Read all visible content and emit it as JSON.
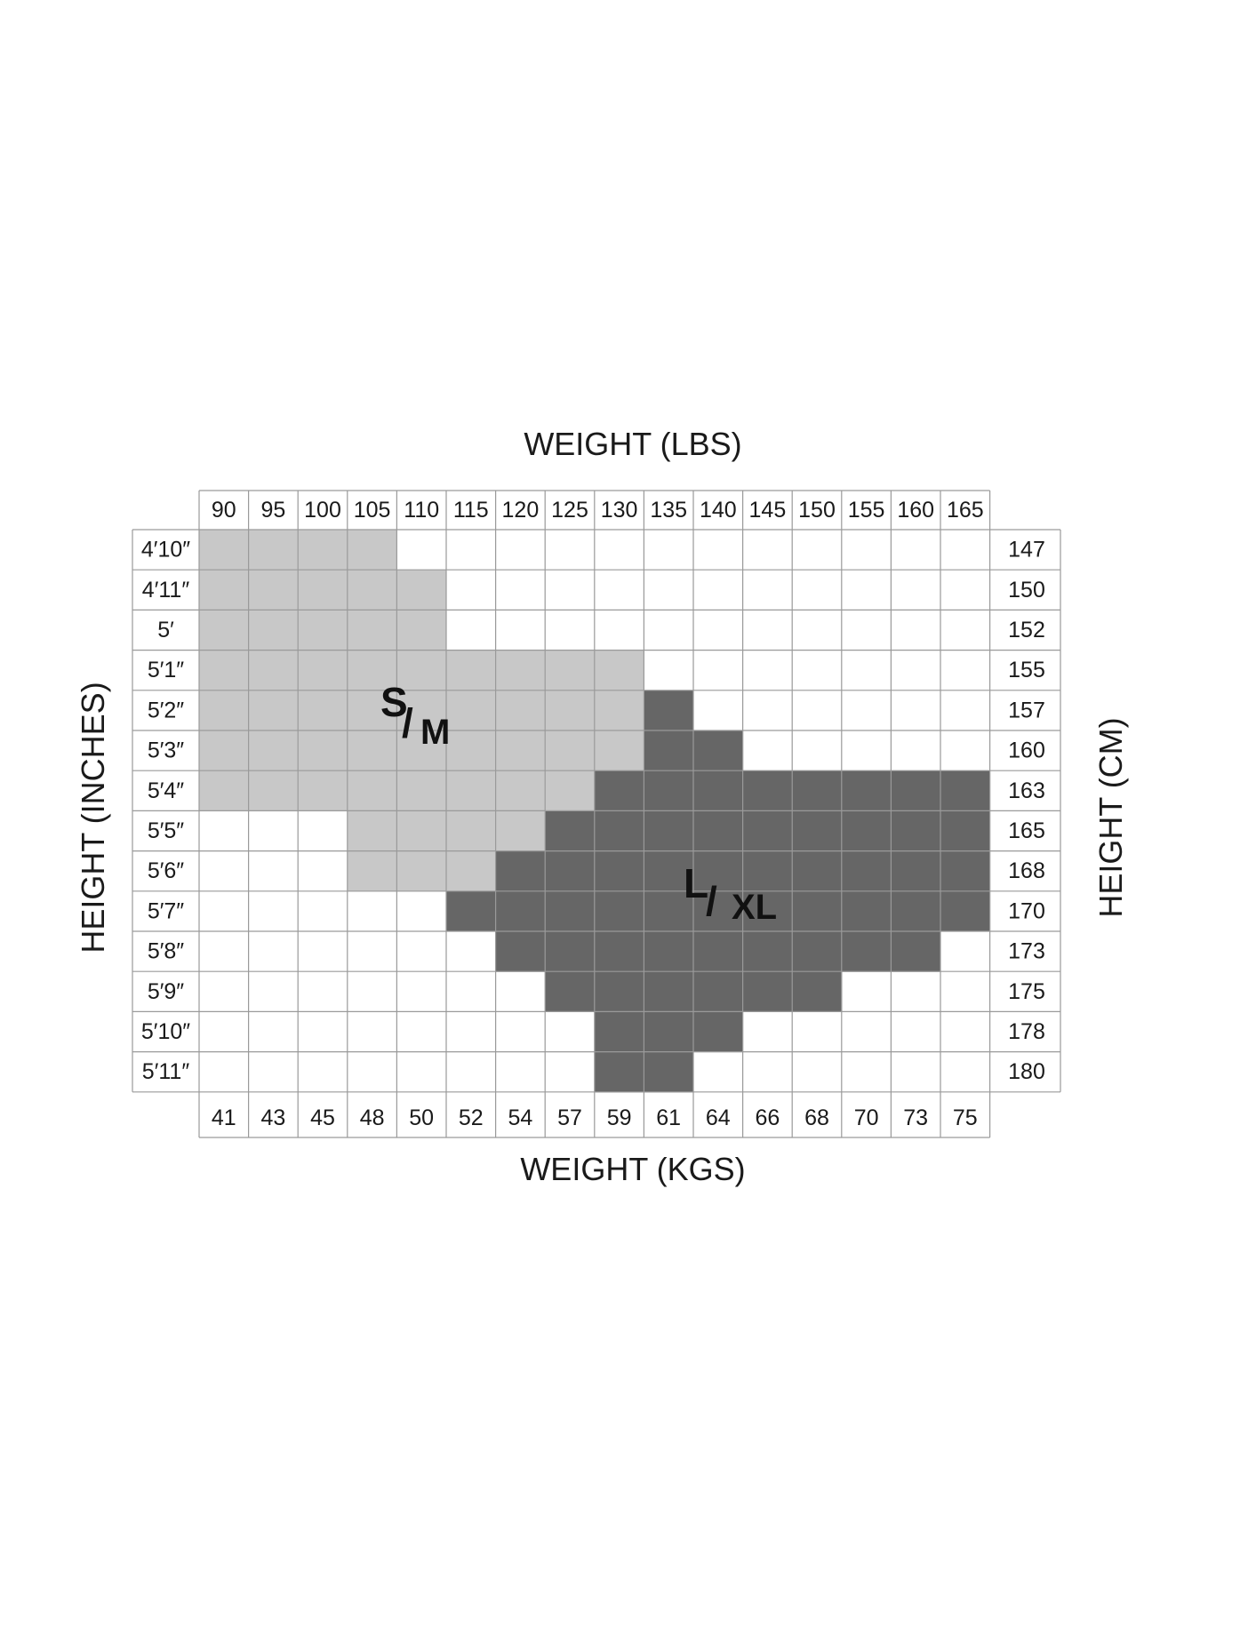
{
  "chart_data": {
    "type": "heatmap",
    "title": "",
    "x_top_label": "WEIGHT (LBS)",
    "x_bottom_label": "WEIGHT (KGS)",
    "y_left_label": "HEIGHT (INCHES)",
    "y_right_label": "HEIGHT (CM)",
    "weights_lbs": [
      "90",
      "95",
      "100",
      "105",
      "110",
      "115",
      "120",
      "125",
      "130",
      "135",
      "140",
      "145",
      "150",
      "155",
      "160",
      "165"
    ],
    "weights_kgs": [
      "41",
      "43",
      "45",
      "48",
      "50",
      "52",
      "54",
      "57",
      "59",
      "61",
      "64",
      "66",
      "68",
      "70",
      "73",
      "75"
    ],
    "heights_in": [
      "4′10″",
      "4′11″",
      "5′",
      "5′1″",
      "5′2″",
      "5′3″",
      "5′4″",
      "5′5″",
      "5′6″",
      "5′7″",
      "5′8″",
      "5′9″",
      "5′10″",
      "5′11″"
    ],
    "heights_cm": [
      "147",
      "150",
      "152",
      "155",
      "157",
      "160",
      "163",
      "165",
      "168",
      "170",
      "173",
      "175",
      "178",
      "180"
    ],
    "sizes": [
      {
        "main": "S",
        "sub": "M",
        "color": "#c8c8c8"
      },
      {
        "main": "L",
        "sub": "XL",
        "color": "#666666"
      }
    ],
    "grid_color": "#9a9a9a",
    "matrix": [
      [
        1,
        1,
        1,
        1,
        0,
        0,
        0,
        0,
        0,
        0,
        0,
        0,
        0,
        0,
        0,
        0
      ],
      [
        1,
        1,
        1,
        1,
        1,
        0,
        0,
        0,
        0,
        0,
        0,
        0,
        0,
        0,
        0,
        0
      ],
      [
        1,
        1,
        1,
        1,
        1,
        0,
        0,
        0,
        0,
        0,
        0,
        0,
        0,
        0,
        0,
        0
      ],
      [
        1,
        1,
        1,
        1,
        1,
        1,
        1,
        1,
        1,
        0,
        0,
        0,
        0,
        0,
        0,
        0
      ],
      [
        1,
        1,
        1,
        1,
        1,
        1,
        1,
        1,
        1,
        2,
        0,
        0,
        0,
        0,
        0,
        0
      ],
      [
        1,
        1,
        1,
        1,
        1,
        1,
        1,
        1,
        1,
        2,
        2,
        0,
        0,
        0,
        0,
        0
      ],
      [
        1,
        1,
        1,
        1,
        1,
        1,
        1,
        1,
        2,
        2,
        2,
        2,
        2,
        2,
        2,
        2
      ],
      [
        0,
        0,
        0,
        1,
        1,
        1,
        1,
        2,
        2,
        2,
        2,
        2,
        2,
        2,
        2,
        2
      ],
      [
        0,
        0,
        0,
        1,
        1,
        1,
        2,
        2,
        2,
        2,
        2,
        2,
        2,
        2,
        2,
        2
      ],
      [
        0,
        0,
        0,
        0,
        0,
        2,
        2,
        2,
        2,
        2,
        2,
        2,
        2,
        2,
        2,
        2
      ],
      [
        0,
        0,
        0,
        0,
        0,
        0,
        2,
        2,
        2,
        2,
        2,
        2,
        2,
        2,
        2,
        0
      ],
      [
        0,
        0,
        0,
        0,
        0,
        0,
        0,
        2,
        2,
        2,
        2,
        2,
        2,
        0,
        0,
        0
      ],
      [
        0,
        0,
        0,
        0,
        0,
        0,
        0,
        0,
        2,
        2,
        2,
        0,
        0,
        0,
        0,
        0
      ],
      [
        0,
        0,
        0,
        0,
        0,
        0,
        0,
        0,
        2,
        2,
        0,
        0,
        0,
        0,
        0,
        0
      ]
    ]
  }
}
